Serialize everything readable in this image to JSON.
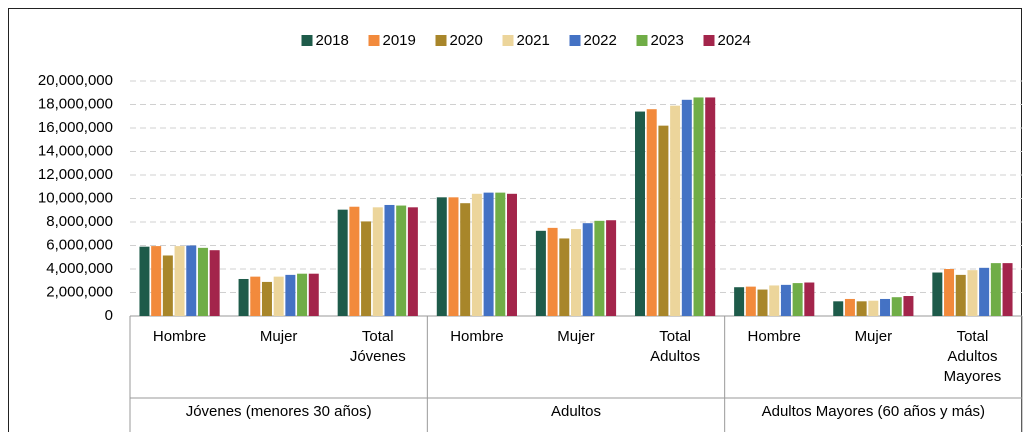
{
  "chart_data": {
    "type": "bar",
    "groups": [
      {
        "name": "Jóvenes (menores 30 años)",
        "categories": [
          "Hombre",
          "Mujer",
          "Total Jóvenes"
        ]
      },
      {
        "name": "Adultos",
        "categories": [
          "Hombre",
          "Mujer",
          "Total Adultos"
        ]
      },
      {
        "name": "Adultos Mayores (60 años y más)",
        "categories": [
          "Hombre",
          "Mujer",
          "Total Adultos Mayores"
        ]
      }
    ],
    "series": [
      {
        "name": "2018",
        "color": "#1e5b4a",
        "values": [
          5900000,
          3150000,
          9050000,
          10100000,
          7250000,
          17400000,
          2450000,
          1250000,
          3700000
        ]
      },
      {
        "name": "2019",
        "color": "#f28a3c",
        "values": [
          5950000,
          3350000,
          9300000,
          10100000,
          7500000,
          17600000,
          2500000,
          1450000,
          4000000
        ]
      },
      {
        "name": "2020",
        "color": "#a8862a",
        "values": [
          5150000,
          2900000,
          8050000,
          9600000,
          6600000,
          16200000,
          2250000,
          1250000,
          3500000
        ]
      },
      {
        "name": "2021",
        "color": "#ecd59b",
        "values": [
          5950000,
          3350000,
          9250000,
          10400000,
          7400000,
          17900000,
          2600000,
          1300000,
          3900000
        ]
      },
      {
        "name": "2022",
        "color": "#4472c4",
        "values": [
          6000000,
          3500000,
          9450000,
          10500000,
          7900000,
          18400000,
          2650000,
          1450000,
          4100000
        ]
      },
      {
        "name": "2023",
        "color": "#70ad47",
        "values": [
          5800000,
          3600000,
          9400000,
          10500000,
          8100000,
          18600000,
          2800000,
          1600000,
          4500000
        ]
      },
      {
        "name": "2024",
        "color": "#a3254b",
        "values": [
          5600000,
          3600000,
          9250000,
          10400000,
          8150000,
          18600000,
          2850000,
          1700000,
          4500000
        ]
      }
    ],
    "ylim": [
      0,
      20000000
    ],
    "yticks": [
      0,
      {
        "value": 2000000,
        "label": "2,000,000"
      },
      {
        "value": 4000000,
        "label": "4,000,000"
      },
      {
        "value": 6000000,
        "label": "6,000,000"
      },
      {
        "value": 8000000,
        "label": "8,000,000"
      },
      {
        "value": 10000000,
        "label": "10,000,000"
      },
      {
        "value": 12000000,
        "label": "12,000,000"
      },
      {
        "value": 14000000,
        "label": "14,000,000"
      },
      {
        "value": 16000000,
        "label": "16,000,000"
      },
      {
        "value": 18000000,
        "label": "18,000,000"
      },
      {
        "value": 20000000,
        "label": "20,000,000"
      }
    ],
    "grid": true,
    "legend": "top"
  }
}
